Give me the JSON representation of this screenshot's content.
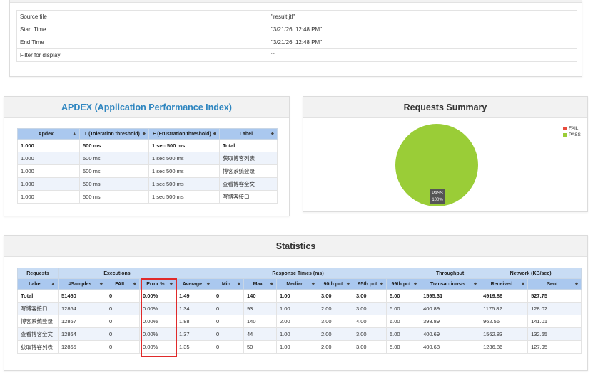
{
  "test_info": {
    "rows": [
      {
        "key": "Source file",
        "value": "\"result.jtl\""
      },
      {
        "key": "Start Time",
        "value": "\"3/21/26, 12:48 PM\""
      },
      {
        "key": "End Time",
        "value": "\"3/21/26, 12:48 PM\""
      },
      {
        "key": "Filter for display",
        "value": "\"\""
      }
    ]
  },
  "apdex": {
    "title": "APDEX (Application Performance Index)",
    "headers": [
      "Apdex",
      "T (Toleration threshold)",
      "F (Frustration threshold)",
      "Label"
    ],
    "rows": [
      [
        "1.000",
        "500 ms",
        "1 sec 500 ms",
        "Total"
      ],
      [
        "1.000",
        "500 ms",
        "1 sec 500 ms",
        "获取博客列表"
      ],
      [
        "1.000",
        "500 ms",
        "1 sec 500 ms",
        "博客系统登录"
      ],
      [
        "1.000",
        "500 ms",
        "1 sec 500 ms",
        "查看博客全文"
      ],
      [
        "1.000",
        "500 ms",
        "1 sec 500 ms",
        "写博客接口"
      ]
    ]
  },
  "requests_summary": {
    "title": "Requests Summary",
    "legend": [
      {
        "label": "FAIL",
        "color": "#e84c3d"
      },
      {
        "label": "PASS",
        "color": "#9acd37"
      }
    ],
    "slice_label": "PASS",
    "slice_percent": "100%"
  },
  "statistics": {
    "title": "Statistics",
    "groups": [
      "Requests",
      "Executions",
      "Response Times (ms)",
      "Throughput",
      "Network (KB/sec)"
    ],
    "headers": [
      "Label",
      "#Samples",
      "FAIL",
      "Error %",
      "Average",
      "Min",
      "Max",
      "Median",
      "90th pct",
      "95th pct",
      "99th pct",
      "Transactions/s",
      "Received",
      "Sent"
    ],
    "rows": [
      [
        "Total",
        "51460",
        "0",
        "0.00%",
        "1.49",
        "0",
        "140",
        "1.00",
        "3.00",
        "3.00",
        "5.00",
        "1595.31",
        "4919.86",
        "527.75"
      ],
      [
        "写博客接口",
        "12864",
        "0",
        "0.00%",
        "1.34",
        "0",
        "93",
        "1.00",
        "2.00",
        "3.00",
        "5.00",
        "400.89",
        "1176.82",
        "128.02"
      ],
      [
        "博客系统登录",
        "12867",
        "0",
        "0.00%",
        "1.88",
        "0",
        "140",
        "2.00",
        "3.00",
        "4.00",
        "6.00",
        "398.89",
        "962.56",
        "141.01"
      ],
      [
        "查看博客全文",
        "12864",
        "0",
        "0.00%",
        "1.37",
        "0",
        "44",
        "1.00",
        "2.00",
        "3.00",
        "5.00",
        "400.69",
        "1562.83",
        "132.65"
      ],
      [
        "获取博客列表",
        "12865",
        "0",
        "0.00%",
        "1.35",
        "0",
        "50",
        "1.00",
        "2.00",
        "3.00",
        "5.00",
        "400.68",
        "1236.86",
        "127.95"
      ]
    ]
  },
  "chart_data": {
    "type": "pie",
    "title": "Requests Summary",
    "categories": [
      "FAIL",
      "PASS"
    ],
    "values": [
      0,
      100
    ],
    "legend": "top-right"
  }
}
